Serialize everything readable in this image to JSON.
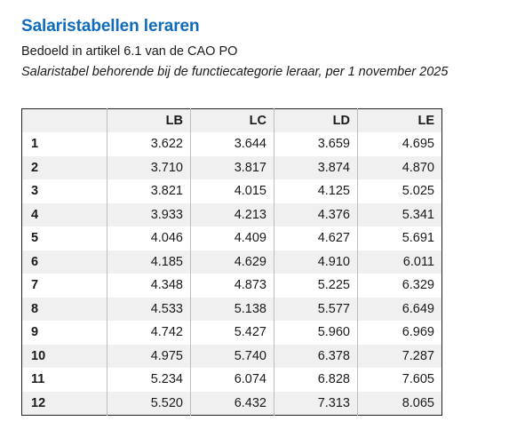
{
  "document": {
    "title": "Salaristabellen leraren",
    "subtitle": "Bedoeld in artikel 6.1 van de CAO PO",
    "caption": "Salaristabel behorende bij de functiecategorie leraar, per 1 november 2025"
  },
  "table": {
    "headers": [
      "",
      "LB",
      "LC",
      "LD",
      "LE"
    ],
    "rows": [
      {
        "step": "1",
        "values": [
          "3.622",
          "3.644",
          "3.659",
          "4.695"
        ]
      },
      {
        "step": "2",
        "values": [
          "3.710",
          "3.817",
          "3.874",
          "4.870"
        ]
      },
      {
        "step": "3",
        "values": [
          "3.821",
          "4.015",
          "4.125",
          "5.025"
        ]
      },
      {
        "step": "4",
        "values": [
          "3.933",
          "4.213",
          "4.376",
          "5.341"
        ]
      },
      {
        "step": "5",
        "values": [
          "4.046",
          "4.409",
          "4.627",
          "5.691"
        ]
      },
      {
        "step": "6",
        "values": [
          "4.185",
          "4.629",
          "4.910",
          "6.011"
        ]
      },
      {
        "step": "7",
        "values": [
          "4.348",
          "4.873",
          "5.225",
          "6.329"
        ]
      },
      {
        "step": "8",
        "values": [
          "4.533",
          "5.138",
          "5.577",
          "6.649"
        ]
      },
      {
        "step": "9",
        "values": [
          "4.742",
          "5.427",
          "5.960",
          "6.969"
        ]
      },
      {
        "step": "10",
        "values": [
          "4.975",
          "5.740",
          "6.378",
          "7.287"
        ]
      },
      {
        "step": "11",
        "values": [
          "5.234",
          "6.074",
          "6.828",
          "7.605"
        ]
      },
      {
        "step": "12",
        "values": [
          "5.520",
          "6.432",
          "7.313",
          "8.065"
        ]
      }
    ]
  },
  "colors": {
    "title": "#0f6cbd",
    "shaded_row": "#f0f0f0"
  }
}
